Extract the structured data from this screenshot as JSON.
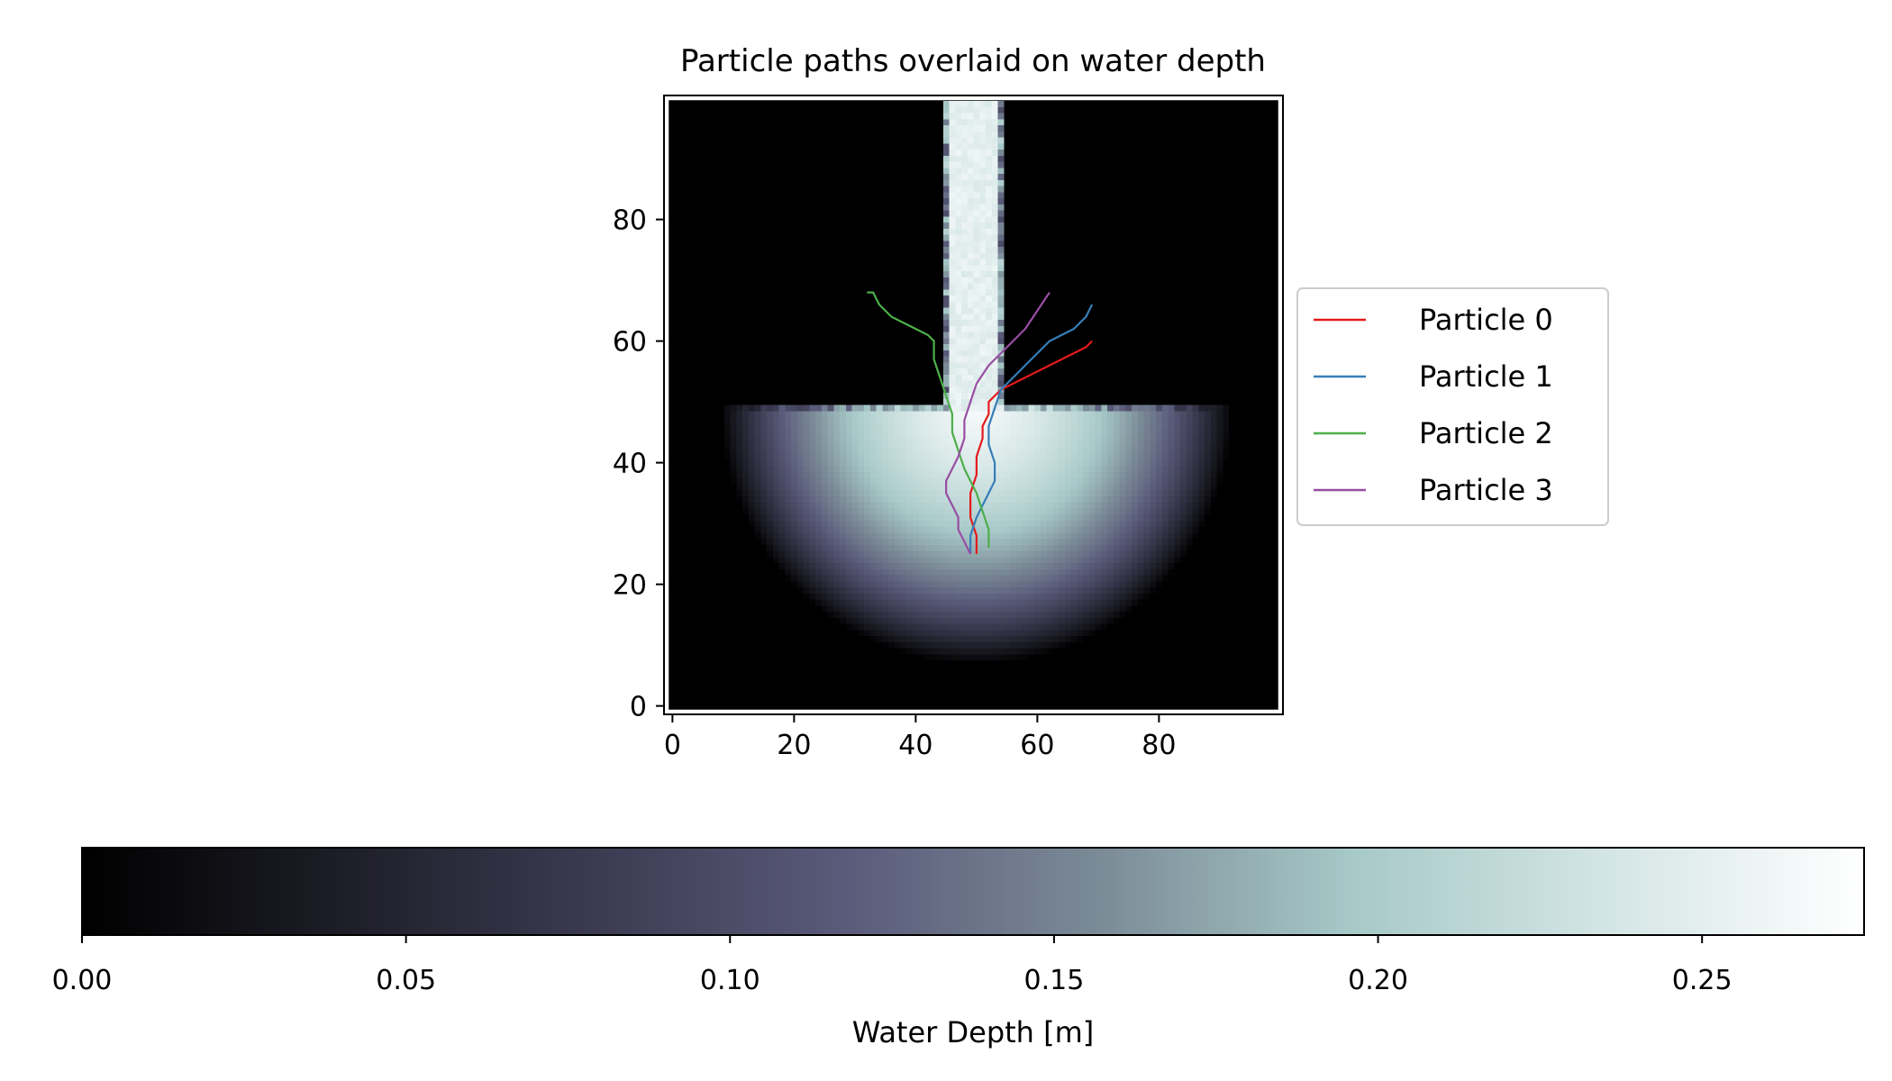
{
  "chart_data": {
    "type": "heatmap",
    "title": "Particle paths overlaid on water depth",
    "xlabel": "",
    "ylabel": "",
    "grid": false,
    "xlim": [
      -0.5,
      99.5
    ],
    "ylim": [
      99.5,
      -0.5
    ],
    "x_ticks": [
      0,
      20,
      40,
      60,
      80
    ],
    "y_ticks": [
      0,
      20,
      40,
      60,
      80
    ],
    "heatmap": {
      "colormap": "bone",
      "channel": {
        "x_range": [
          45,
          54
        ],
        "y_range": [
          0,
          50
        ],
        "depth": 0.26
      },
      "basin": {
        "center": [
          50,
          50
        ],
        "radius": 42,
        "max_depth": 0.27
      }
    },
    "colorbar": {
      "label": "Water Depth [m]",
      "range": [
        0,
        0.275
      ],
      "ticks": [
        0.0,
        0.05,
        0.1,
        0.15,
        0.2,
        0.25
      ],
      "tick_labels": [
        "0.00",
        "0.05",
        "0.10",
        "0.15",
        "0.20",
        "0.25"
      ],
      "stops": [
        "#000000",
        "#1d1d27",
        "#3b3a51",
        "#5a5b7a",
        "#7b8b97",
        "#a7c9c8",
        "#d4e5e5",
        "#ffffff"
      ]
    },
    "legend_placement": "center-right",
    "series": [
      {
        "name": "Particle 0",
        "color": "#e41a1c",
        "x": [
          50,
          50,
          49,
          49,
          50,
          50,
          51,
          51,
          52,
          52,
          53,
          54,
          56,
          58,
          60,
          62,
          64,
          66,
          68,
          69
        ],
        "y": [
          25,
          28,
          31,
          35,
          38,
          41,
          44,
          46,
          48,
          50,
          51,
          52,
          53,
          54,
          55,
          56,
          57,
          58,
          59,
          60
        ]
      },
      {
        "name": "Particle 1",
        "color": "#377eb8",
        "x": [
          49,
          49,
          50,
          51,
          52,
          53,
          53,
          52,
          52,
          53,
          54,
          56,
          58,
          60,
          62,
          64,
          66,
          68,
          69
        ],
        "y": [
          25,
          28,
          31,
          33,
          35,
          37,
          40,
          43,
          46,
          49,
          52,
          54,
          56,
          58,
          60,
          61,
          62,
          64,
          66
        ]
      },
      {
        "name": "Particle 2",
        "color": "#4daf4a",
        "x": [
          52,
          52,
          51,
          50,
          49,
          48,
          47,
          46,
          46,
          45,
          44,
          43,
          43,
          42,
          40,
          38,
          36,
          34,
          33,
          32
        ],
        "y": [
          26,
          29,
          32,
          35,
          37,
          39,
          42,
          45,
          48,
          51,
          54,
          57,
          60,
          61,
          62,
          63,
          64,
          66,
          68,
          68
        ]
      },
      {
        "name": "Particle 3",
        "color": "#984ea3",
        "x": [
          49,
          48,
          47,
          47,
          46,
          45,
          45,
          46,
          47,
          48,
          48,
          49,
          50,
          52,
          54,
          56,
          58,
          60,
          62
        ],
        "y": [
          25,
          27,
          29,
          31,
          33,
          35,
          37,
          39,
          41,
          44,
          47,
          50,
          53,
          56,
          58,
          60,
          62,
          65,
          68
        ]
      }
    ]
  }
}
